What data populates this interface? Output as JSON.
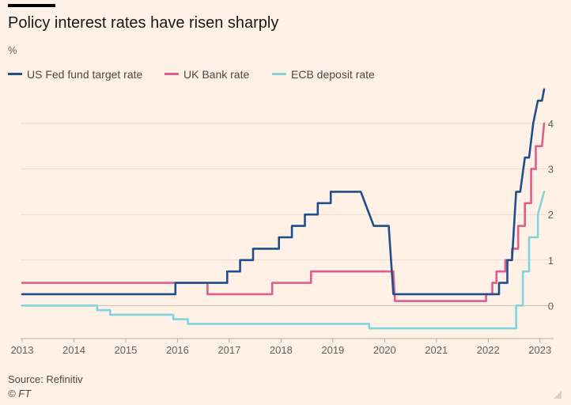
{
  "chart_data": {
    "type": "line",
    "title": "Policy interest rates have risen sharply",
    "ylabel": "%",
    "xlim": [
      2013,
      2023.05
    ],
    "ylim": [
      -0.55,
      4.8
    ],
    "x_ticks": [
      "2013",
      "2014",
      "2015",
      "2016",
      "2017",
      "2018",
      "2019",
      "2020",
      "2021",
      "2022",
      "2023"
    ],
    "y_ticks": [
      {
        "value": 0,
        "label": "0"
      },
      {
        "value": 1,
        "label": "1"
      },
      {
        "value": 2,
        "label": "2"
      },
      {
        "value": 3,
        "label": "3"
      },
      {
        "value": 4,
        "label": "4"
      }
    ],
    "grid": true,
    "legend_position": "top-left",
    "series": [
      {
        "name": "US Fed fund target rate",
        "color": "#1f4e8c",
        "step": true,
        "points": [
          [
            2013.0,
            0.25
          ],
          [
            2015.96,
            0.25
          ],
          [
            2015.96,
            0.5
          ],
          [
            2016.96,
            0.5
          ],
          [
            2016.96,
            0.75
          ],
          [
            2017.21,
            0.75
          ],
          [
            2017.21,
            1.0
          ],
          [
            2017.46,
            1.0
          ],
          [
            2017.46,
            1.25
          ],
          [
            2017.96,
            1.25
          ],
          [
            2017.96,
            1.5
          ],
          [
            2018.21,
            1.5
          ],
          [
            2018.21,
            1.75
          ],
          [
            2018.46,
            1.75
          ],
          [
            2018.46,
            2.0
          ],
          [
            2018.71,
            2.0
          ],
          [
            2018.71,
            2.25
          ],
          [
            2018.96,
            2.25
          ],
          [
            2018.96,
            2.5
          ],
          [
            2019.54,
            2.5
          ],
          [
            2019.79,
            1.75
          ],
          [
            2020.08,
            1.75
          ],
          [
            2020.17,
            0.25
          ],
          [
            2022.04,
            0.25
          ],
          [
            2022.21,
            0.25
          ],
          [
            2022.21,
            0.5
          ],
          [
            2022.37,
            0.5
          ],
          [
            2022.37,
            1.0
          ],
          [
            2022.46,
            1.0
          ],
          [
            2022.54,
            2.5
          ],
          [
            2022.62,
            2.5
          ],
          [
            2022.71,
            3.25
          ],
          [
            2022.79,
            3.25
          ],
          [
            2022.87,
            4.0
          ],
          [
            2022.96,
            4.5
          ],
          [
            2023.04,
            4.5
          ],
          [
            2023.08,
            4.75
          ]
        ]
      },
      {
        "name": "UK Bank rate",
        "color": "#e05e8e",
        "step": true,
        "points": [
          [
            2013.0,
            0.5
          ],
          [
            2016.58,
            0.5
          ],
          [
            2016.58,
            0.25
          ],
          [
            2017.83,
            0.25
          ],
          [
            2017.83,
            0.5
          ],
          [
            2018.58,
            0.5
          ],
          [
            2018.58,
            0.75
          ],
          [
            2020.17,
            0.75
          ],
          [
            2020.2,
            0.1
          ],
          [
            2021.96,
            0.1
          ],
          [
            2021.96,
            0.25
          ],
          [
            2022.08,
            0.25
          ],
          [
            2022.08,
            0.5
          ],
          [
            2022.16,
            0.5
          ],
          [
            2022.16,
            0.75
          ],
          [
            2022.33,
            0.75
          ],
          [
            2022.33,
            1.0
          ],
          [
            2022.46,
            1.0
          ],
          [
            2022.46,
            1.25
          ],
          [
            2022.58,
            1.25
          ],
          [
            2022.58,
            1.75
          ],
          [
            2022.71,
            1.75
          ],
          [
            2022.71,
            2.25
          ],
          [
            2022.83,
            2.25
          ],
          [
            2022.83,
            3.0
          ],
          [
            2022.92,
            3.0
          ],
          [
            2022.92,
            3.5
          ],
          [
            2023.04,
            3.5
          ],
          [
            2023.08,
            4.0
          ]
        ]
      },
      {
        "name": "ECB deposit rate",
        "color": "#7fd4df",
        "step": true,
        "points": [
          [
            2013.0,
            0.0
          ],
          [
            2014.45,
            0.0
          ],
          [
            2014.45,
            -0.1
          ],
          [
            2014.7,
            -0.1
          ],
          [
            2014.7,
            -0.2
          ],
          [
            2015.92,
            -0.2
          ],
          [
            2015.92,
            -0.3
          ],
          [
            2016.2,
            -0.3
          ],
          [
            2016.2,
            -0.4
          ],
          [
            2019.7,
            -0.4
          ],
          [
            2019.7,
            -0.5
          ],
          [
            2022.54,
            -0.5
          ],
          [
            2022.54,
            0.0
          ],
          [
            2022.67,
            0.0
          ],
          [
            2022.67,
            0.75
          ],
          [
            2022.79,
            0.75
          ],
          [
            2022.79,
            1.5
          ],
          [
            2022.96,
            1.5
          ],
          [
            2022.96,
            2.0
          ],
          [
            2023.08,
            2.5
          ]
        ]
      }
    ]
  },
  "legend": {
    "items": [
      {
        "label": "US Fed fund target rate",
        "color": "#1f4e8c"
      },
      {
        "label": "UK Bank rate",
        "color": "#e05e8e"
      },
      {
        "label": "ECB deposit rate",
        "color": "#7fd4df"
      }
    ]
  },
  "footer": {
    "source": "Source: Refinitiv",
    "credit": "© FT"
  },
  "icons": {
    "resize": "resize-corner-icon"
  }
}
